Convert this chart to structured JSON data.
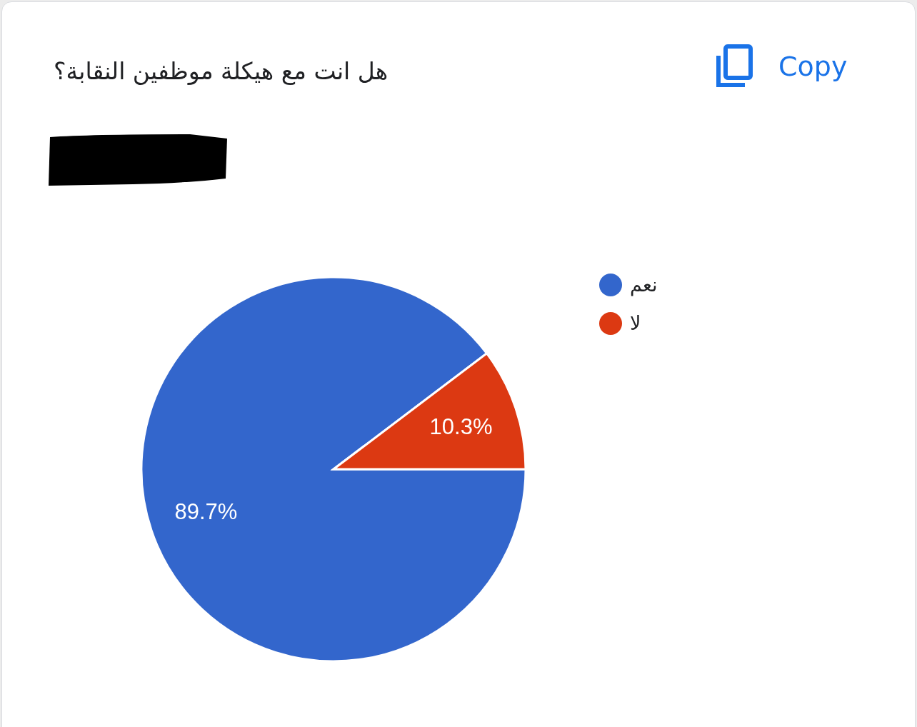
{
  "chart_data": {
    "type": "pie",
    "title": "هل انت مع هيكلة موظفين النقابة؟",
    "categories": [
      "نعم",
      "لا"
    ],
    "values": [
      89.7,
      10.3
    ],
    "colors": [
      "#3366cc",
      "#dc3912"
    ],
    "value_labels": [
      "89.7%",
      "10.3%"
    ],
    "legend": "top right",
    "annotations": [
      "Copy"
    ]
  }
}
